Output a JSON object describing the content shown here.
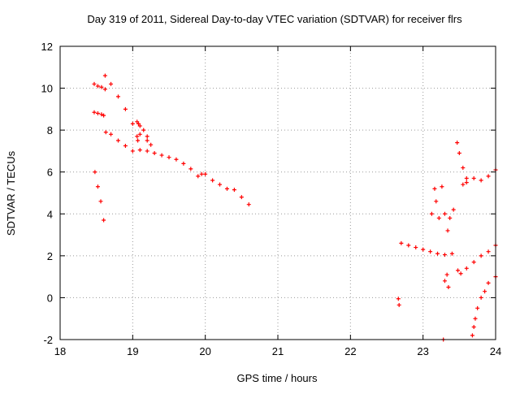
{
  "chart_data": {
    "type": "scatter",
    "title": "Day 319 of 2011, Sidereal Day-to-day VTEC variation (SDTVAR) for receiver flrs",
    "xlabel": "GPS time / hours",
    "ylabel": "SDTVAR / TECUs",
    "xlim": [
      18,
      24
    ],
    "ylim": [
      -2,
      12
    ],
    "x_ticks": [
      "18",
      "19",
      "20",
      "21",
      "22",
      "23",
      "24"
    ],
    "y_ticks": [
      "-2",
      "0",
      "2",
      "4",
      "6",
      "8",
      "10",
      "12"
    ],
    "grid": true,
    "legend": "none",
    "marker": "+",
    "color": "#ff0000",
    "series": [
      {
        "x": [
          18.48,
          18.52,
          18.56,
          18.6
        ],
        "y": [
          6.0,
          5.3,
          4.6,
          3.7
        ]
      },
      {
        "x": [
          18.47,
          18.52,
          18.57,
          18.6
        ],
        "y": [
          8.85,
          8.8,
          8.75,
          8.7
        ]
      },
      {
        "x": [
          18.47,
          18.52,
          18.57,
          18.62
        ],
        "y": [
          10.2,
          10.1,
          10.05,
          9.95
        ]
      },
      {
        "x": [
          18.62,
          18.7,
          18.8,
          18.9,
          19.0,
          19.1,
          19.2
        ],
        "y": [
          10.6,
          10.2,
          9.6,
          9.0,
          8.3,
          7.8,
          7.5
        ]
      },
      {
        "x": [
          18.63,
          18.7,
          18.8,
          18.9,
          19.0,
          19.1,
          19.2,
          19.3,
          19.4,
          19.5,
          19.6,
          19.7,
          19.8,
          19.9
        ],
        "y": [
          7.9,
          7.8,
          7.5,
          7.25,
          7.0,
          7.05,
          7.0,
          6.9,
          6.8,
          6.7,
          6.6,
          6.4,
          6.15,
          5.8
        ]
      },
      {
        "x": [
          19.06,
          19.08,
          19.1,
          19.15,
          19.2,
          19.25
        ],
        "y": [
          8.4,
          8.3,
          8.2,
          8.0,
          7.7,
          7.3
        ]
      },
      {
        "x": [
          19.06,
          19.07
        ],
        "y": [
          7.7,
          7.5
        ]
      },
      {
        "x": [
          19.95,
          20.0,
          20.1,
          20.2,
          20.3,
          20.4,
          20.5,
          20.6
        ],
        "y": [
          5.9,
          5.9,
          5.6,
          5.4,
          5.2,
          5.15,
          4.8,
          4.45
        ]
      },
      {
        "x": [
          22.66,
          22.67
        ],
        "y": [
          -0.05,
          -0.35
        ]
      },
      {
        "x": [
          22.7,
          22.8,
          22.9,
          23.0,
          23.1,
          23.2,
          23.3,
          23.4
        ],
        "y": [
          2.6,
          2.5,
          2.4,
          2.3,
          2.2,
          2.1,
          2.05,
          2.1
        ]
      },
      {
        "x": [
          23.12,
          23.16,
          23.18,
          23.22,
          23.26,
          23.3,
          23.34,
          23.37,
          23.42
        ],
        "y": [
          4.0,
          5.2,
          4.6,
          3.8,
          5.3,
          4.0,
          3.2,
          3.8,
          4.2
        ]
      },
      {
        "x": [
          23.3,
          23.33,
          23.35
        ],
        "y": [
          0.8,
          1.1,
          0.5
        ]
      },
      {
        "x": [
          23.28
        ],
        "y": [
          -2.0
        ]
      },
      {
        "x": [
          23.47,
          23.5,
          23.55,
          23.6
        ],
        "y": [
          7.4,
          6.9,
          6.2,
          5.7
        ]
      },
      {
        "x": [
          23.55,
          23.6,
          23.7,
          23.8,
          23.9,
          24.0
        ],
        "y": [
          5.4,
          5.5,
          5.7,
          5.6,
          5.8,
          6.1
        ]
      },
      {
        "x": [
          23.48,
          23.52,
          23.6,
          23.7,
          23.8,
          23.9,
          24.0
        ],
        "y": [
          1.3,
          1.15,
          1.4,
          1.7,
          2.0,
          2.2,
          2.5
        ]
      },
      {
        "x": [
          23.68,
          23.7,
          23.72,
          23.75,
          23.8,
          23.85,
          23.9,
          24.0
        ],
        "y": [
          -1.8,
          -1.4,
          -1.0,
          -0.5,
          0.0,
          0.3,
          0.7,
          1.0
        ]
      }
    ]
  }
}
